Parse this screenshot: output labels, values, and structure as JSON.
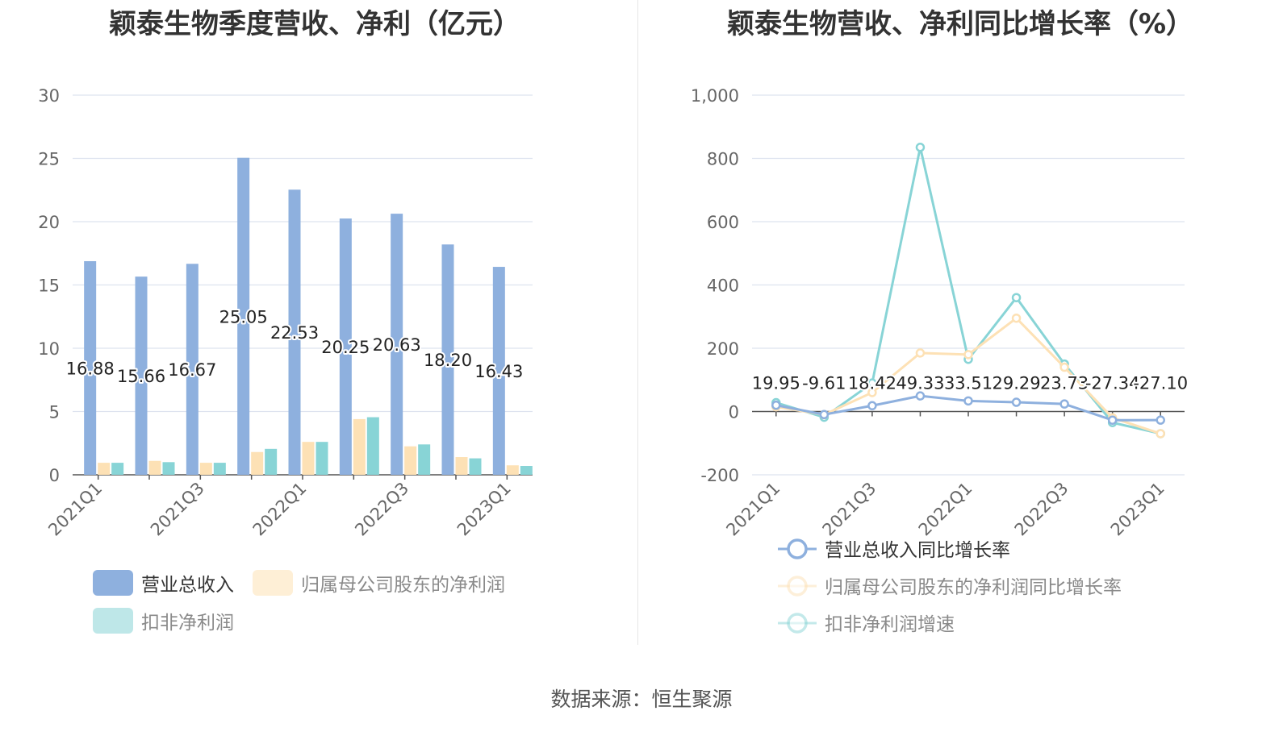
{
  "charts": {
    "left_title": "颖泰生物季度营收、净利（亿元）",
    "right_title": "颖泰生物营收、净利同比增长率（%）"
  },
  "source": "数据来源：恒生聚源",
  "colors": {
    "revenue": "#8eb0de",
    "net_profit": "#fde1b5",
    "deducted_profit": "#88d4d6",
    "grid": "#dde3ef",
    "axis": "#555555"
  },
  "chart_data": [
    {
      "type": "bar",
      "title": "颖泰生物季度营收、净利（亿元）",
      "categories": [
        "2021Q1",
        "2021Q2",
        "2021Q3",
        "2021Q4",
        "2022Q1",
        "2022Q2",
        "2022Q3",
        "2022Q4",
        "2023Q1"
      ],
      "x_tick_labels": [
        "2021Q1",
        "2021Q3",
        "2022Q1",
        "2022Q3",
        "2023Q1"
      ],
      "ylim": [
        0,
        30
      ],
      "y_ticks": [
        "0",
        "5",
        "10",
        "15",
        "20",
        "25",
        "30"
      ],
      "grid": true,
      "legend_position": "bottom",
      "series": [
        {
          "name": "营业总收入",
          "values": [
            16.88,
            15.66,
            16.67,
            25.05,
            22.53,
            20.25,
            20.63,
            18.2,
            16.43
          ],
          "labels": [
            "16.88",
            "15.66",
            "16.67",
            "25.05",
            "22.53",
            "20.25",
            "20.63",
            "18.20",
            "16.43"
          ]
        },
        {
          "name": "归属母公司股东的净利润",
          "values": [
            0.95,
            1.1,
            0.95,
            1.8,
            2.6,
            4.4,
            2.25,
            1.4,
            0.75
          ]
        },
        {
          "name": "扣非净利润",
          "values": [
            0.95,
            1.0,
            0.95,
            2.05,
            2.6,
            4.55,
            2.4,
            1.3,
            0.7
          ]
        }
      ]
    },
    {
      "type": "line",
      "title": "颖泰生物营收、净利同比增长率（%）",
      "categories": [
        "2021Q1",
        "2021Q2",
        "2021Q3",
        "2021Q4",
        "2022Q1",
        "2022Q2",
        "2022Q3",
        "2022Q4",
        "2023Q1"
      ],
      "x_tick_labels": [
        "2021Q1",
        "2021Q3",
        "2022Q1",
        "2022Q3",
        "2023Q1"
      ],
      "ylim": [
        -200,
        1000
      ],
      "y_ticks": [
        "-200",
        "0",
        "200",
        "400",
        "600",
        "800",
        "1,000"
      ],
      "grid": true,
      "legend_position": "bottom",
      "series": [
        {
          "name": "营业总收入同比增长率",
          "values": [
            19.95,
            -9.61,
            18.42,
            49.33,
            33.51,
            29.29,
            23.73,
            -27.34,
            -27.1
          ],
          "labels": [
            "19.95",
            "-9.61",
            "18.42",
            "49.33",
            "33.51",
            "29.29",
            "23.73",
            "-27.34",
            "-27.10"
          ]
        },
        {
          "name": "归属母公司股东的净利润同比增长率",
          "values": [
            15,
            -10,
            60,
            185,
            180,
            295,
            140,
            -20,
            -70
          ]
        },
        {
          "name": "扣非净利润增速",
          "values": [
            28,
            -18,
            90,
            835,
            165,
            360,
            150,
            -35,
            -70
          ]
        }
      ]
    }
  ]
}
